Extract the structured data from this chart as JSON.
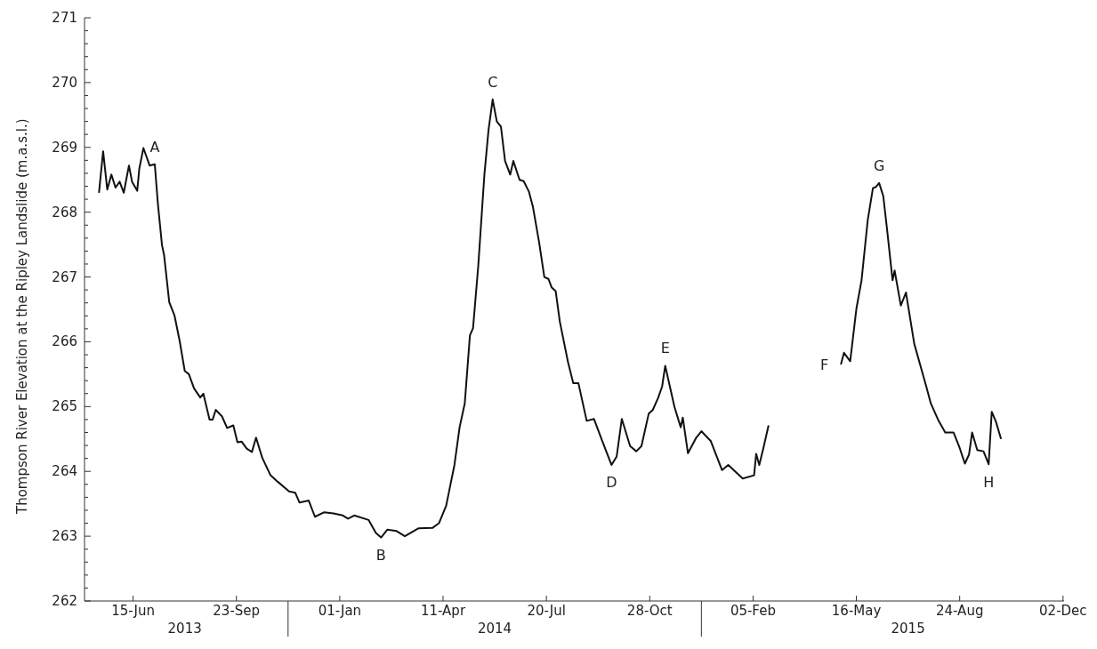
{
  "chart_data": {
    "type": "line",
    "ylabel": "Thompson River Elevation at the Ripley Landslide (m.a.s.l.)",
    "x": [
      "2013-05-13",
      "2013-05-17",
      "2013-05-21",
      "2013-05-25",
      "2013-05-29",
      "2013-06-02",
      "2013-06-06",
      "2013-06-11",
      "2013-06-14",
      "2013-06-19",
      "2013-06-21",
      "2013-06-25",
      "2013-07-01",
      "2013-07-06",
      "2013-07-09",
      "2013-07-13",
      "2013-07-15",
      "2013-07-20",
      "2013-07-25",
      "2013-07-30",
      "2013-08-04",
      "2013-08-08",
      "2013-08-13",
      "2013-08-19",
      "2013-08-22",
      "2013-08-28",
      "2013-08-31",
      "2013-09-03",
      "2013-09-09",
      "2013-09-14",
      "2013-09-20",
      "2013-09-24",
      "2013-09-28",
      "2013-10-03",
      "2013-10-08",
      "2013-10-12",
      "2013-10-18",
      "2013-10-26",
      "2013-11-02",
      "2013-11-13",
      "2013-11-19",
      "2013-11-23",
      "2013-12-02",
      "2013-12-08",
      "2013-12-17",
      "2013-12-26",
      "2014-01-04",
      "2014-01-09",
      "2014-01-15",
      "2014-01-29",
      "2014-02-05",
      "2014-02-10",
      "2014-02-16",
      "2014-02-25",
      "2014-03-05",
      "2014-03-18",
      "2014-04-01",
      "2014-04-07",
      "2014-04-14",
      "2014-04-22",
      "2014-04-27",
      "2014-05-02",
      "2014-05-07",
      "2014-05-10",
      "2014-05-15",
      "2014-05-21",
      "2014-05-25",
      "2014-05-29",
      "2014-06-02",
      "2014-06-06",
      "2014-06-10",
      "2014-06-15",
      "2014-06-18",
      "2014-06-24",
      "2014-06-28",
      "2014-07-03",
      "2014-07-07",
      "2014-07-13",
      "2014-07-18",
      "2014-07-22",
      "2014-07-25",
      "2014-07-29",
      "2014-08-02",
      "2014-08-10",
      "2014-08-15",
      "2014-08-20",
      "2014-08-28",
      "2014-09-04",
      "2014-09-12",
      "2014-09-21",
      "2014-09-26",
      "2014-10-01",
      "2014-10-09",
      "2014-10-15",
      "2014-10-20",
      "2014-10-27",
      "2014-10-31",
      "2014-11-05",
      "2014-11-09",
      "2014-11-12",
      "2014-11-21",
      "2014-11-27",
      "2014-11-29",
      "2014-12-04",
      "2014-12-12",
      "2014-12-17",
      "2014-12-26",
      "2015-01-06",
      "2015-01-12",
      "2015-01-26",
      "2015-02-06",
      "2015-02-08",
      "2015-02-11",
      "2015-02-15",
      "2015-02-20",
      "2015-03-20",
      "2015-05-01",
      "2015-05-04",
      "2015-05-10",
      "2015-05-16",
      "2015-05-21",
      "2015-05-27",
      "2015-06-01",
      "2015-06-04",
      "2015-06-07",
      "2015-06-11",
      "2015-06-15",
      "2015-06-20",
      "2015-06-22",
      "2015-06-28",
      "2015-07-03",
      "2015-07-11",
      "2015-07-17",
      "2015-07-23",
      "2015-07-27",
      "2015-08-03",
      "2015-08-10",
      "2015-08-18",
      "2015-08-24",
      "2015-08-29",
      "2015-09-02",
      "2015-09-05",
      "2015-09-10",
      "2015-09-16",
      "2015-09-21",
      "2015-09-24",
      "2015-09-28",
      "2015-10-03"
    ],
    "values": [
      268.3,
      268.94,
      268.35,
      268.58,
      268.38,
      268.47,
      268.3,
      268.72,
      268.47,
      268.33,
      268.67,
      268.99,
      268.72,
      268.74,
      268.13,
      267.49,
      267.34,
      266.61,
      266.41,
      266.02,
      265.55,
      265.5,
      265.28,
      265.14,
      265.2,
      264.8,
      264.8,
      264.95,
      264.85,
      264.67,
      264.71,
      264.45,
      264.46,
      264.35,
      264.3,
      264.52,
      264.21,
      263.94,
      263.84,
      263.69,
      263.67,
      263.52,
      263.55,
      263.3,
      263.37,
      263.35,
      263.32,
      263.27,
      263.32,
      263.25,
      263.05,
      262.98,
      263.1,
      263.08,
      263.0,
      263.12,
      263.13,
      263.2,
      263.47,
      264.1,
      264.68,
      265.05,
      266.1,
      266.21,
      267.16,
      268.58,
      269.27,
      269.74,
      269.4,
      269.32,
      268.79,
      268.58,
      268.79,
      268.5,
      268.48,
      268.32,
      268.08,
      267.53,
      267.0,
      266.97,
      266.84,
      266.78,
      266.31,
      265.68,
      265.36,
      265.36,
      264.78,
      264.81,
      264.47,
      264.1,
      264.23,
      264.81,
      264.39,
      264.31,
      264.39,
      264.89,
      264.95,
      265.13,
      265.31,
      265.63,
      264.99,
      264.68,
      264.83,
      264.28,
      264.52,
      264.62,
      264.47,
      264.02,
      264.1,
      263.89,
      263.94,
      264.27,
      264.1,
      264.36,
      264.71,
      null,
      265.65,
      265.83,
      265.7,
      266.51,
      266.95,
      267.88,
      268.37,
      268.39,
      268.45,
      268.25,
      267.69,
      266.95,
      267.1,
      266.56,
      266.76,
      265.97,
      265.63,
      265.29,
      265.05,
      264.8,
      264.6,
      264.6,
      264.36,
      264.12,
      264.26,
      264.6,
      264.33,
      264.31,
      264.11,
      264.92,
      264.77,
      264.5
    ],
    "color": "#111111",
    "xlim": [
      "2013-04-29",
      "2015-12-03"
    ],
    "xticks": [
      {
        "value": "2013-06-15",
        "label": "15-Jun"
      },
      {
        "value": "2013-09-23",
        "label": "23-Sep"
      },
      {
        "value": "2014-01-01",
        "label": "01-Jan"
      },
      {
        "value": "2014-04-11",
        "label": "11-Apr"
      },
      {
        "value": "2014-07-20",
        "label": "20-Jul"
      },
      {
        "value": "2014-10-28",
        "label": "28-Oct"
      },
      {
        "value": "2015-02-05",
        "label": "05-Feb"
      },
      {
        "value": "2015-05-16",
        "label": "16-May"
      },
      {
        "value": "2015-08-24",
        "label": "24-Aug"
      },
      {
        "value": "2015-12-02",
        "label": "02-Dec"
      }
    ],
    "ylim": [
      262,
      271
    ],
    "yticks": [
      262,
      {
        "value": 262.2,
        "label": null
      },
      {
        "value": 262.4,
        "label": null
      },
      {
        "value": 262.6,
        "label": null
      },
      {
        "value": 262.8,
        "label": null
      },
      263,
      {
        "value": 263.2,
        "label": null
      },
      {
        "value": 263.4,
        "label": null
      },
      {
        "value": 263.6,
        "label": null
      },
      {
        "value": 263.8,
        "label": null
      },
      264,
      {
        "value": 264.2,
        "label": null
      },
      {
        "value": 264.4,
        "label": null
      },
      {
        "value": 264.6,
        "label": null
      },
      {
        "value": 264.8,
        "label": null
      },
      265,
      {
        "value": 265.2,
        "label": null
      },
      {
        "value": 265.4,
        "label": null
      },
      {
        "value": 265.6,
        "label": null
      },
      {
        "value": 265.8,
        "label": null
      },
      266,
      {
        "value": 266.2,
        "label": null
      },
      {
        "value": 266.4,
        "label": null
      },
      {
        "value": 266.6,
        "label": null
      },
      {
        "value": 266.8,
        "label": null
      },
      267,
      {
        "value": 267.2,
        "label": null
      },
      {
        "value": 267.4,
        "label": null
      },
      {
        "value": 267.6,
        "label": null
      },
      {
        "value": 267.8,
        "label": null
      },
      268,
      {
        "value": 268.2,
        "label": null
      },
      {
        "value": 268.4,
        "label": null
      },
      {
        "value": 268.6,
        "label": null
      },
      {
        "value": 268.8,
        "label": null
      },
      269,
      {
        "value": 269.2,
        "label": null
      },
      {
        "value": 269.4,
        "label": null
      },
      {
        "value": 269.6,
        "label": null
      },
      {
        "value": 269.8,
        "label": null
      },
      270,
      {
        "value": 270.2,
        "label": null
      },
      {
        "value": 270.4,
        "label": null
      },
      {
        "value": 270.6,
        "label": null
      },
      {
        "value": 270.8,
        "label": null
      },
      271
    ],
    "annotations": [
      {
        "text": "A",
        "x": "2013-07-06",
        "y": 268.74
      },
      {
        "text": "B",
        "x": "2014-02-10",
        "y": 262.98
      },
      {
        "text": "C",
        "x": "2014-05-29",
        "y": 269.74
      },
      {
        "text": "D",
        "x": "2014-09-21",
        "y": 264.1
      },
      {
        "text": "E",
        "x": "2014-11-12",
        "y": 265.63
      },
      {
        "text": "F",
        "x": "2015-05-01",
        "y": 265.65
      },
      {
        "text": "G",
        "x": "2015-06-07",
        "y": 268.45
      },
      {
        "text": "H",
        "x": "2015-09-21",
        "y": 264.11
      },
      "2013",
      "2014",
      "2015"
    ]
  }
}
